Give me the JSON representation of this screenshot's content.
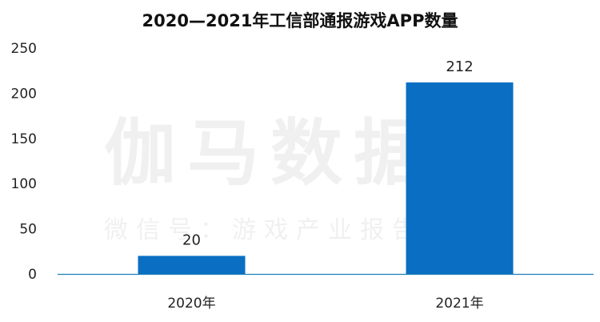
{
  "chart_data": {
    "type": "bar",
    "title": "2020—2021年工信部通报游戏APP数量",
    "xlabel": "",
    "ylabel": "",
    "categories": [
      "2020年",
      "2021年"
    ],
    "values": [
      20,
      212
    ],
    "data_labels": [
      "20",
      "212"
    ],
    "ylim": [
      0,
      250
    ],
    "yticks": [
      0,
      50,
      100,
      150,
      200,
      250
    ],
    "grid": false,
    "legend": "none",
    "bar_color": "#0A6FC2",
    "axis_color": "#1F7FB8"
  },
  "watermark": {
    "main": "伽马数据",
    "sub": "微信号：游戏产业报告"
  }
}
